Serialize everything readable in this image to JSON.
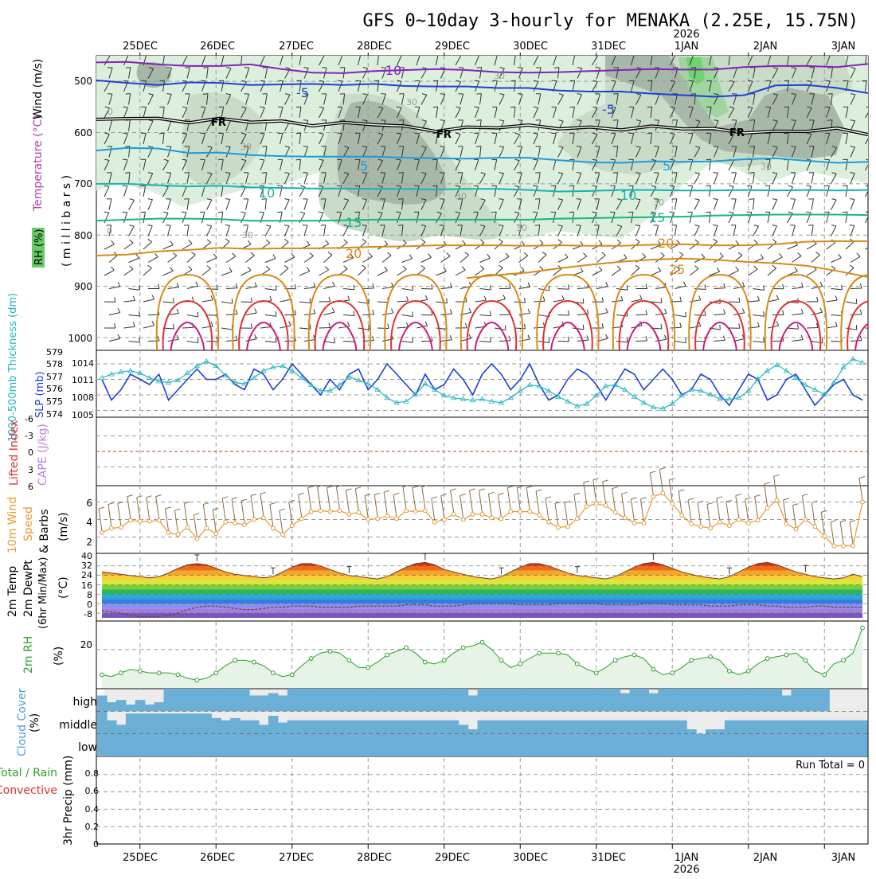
{
  "title": "GFS 0~10day 3-hourly for MENAKA (2.25E, 15.75N)",
  "colors": {
    "rh_fill_light": "#dcefdc",
    "rh_fill_mid": "#c8dcc8",
    "rh_fill_dark": "#a8b8a8",
    "rh_fill_bright": "#22dd22",
    "freezing": "#000000",
    "temp_cold": "#8a1fbf",
    "temp_blue": "#1e3fd8",
    "temp_lightblue": "#1a9be0",
    "temp_teal": "#14b4b4",
    "temp_green": "#18b488",
    "temp_orange": "#d88a18",
    "temp_red": "#e03030",
    "temp_magenta": "#d0187a",
    "slp": "#1e3fd8",
    "thickness": "#22b5c2",
    "wind10m": "#e59a33",
    "rh2m": "#2ca02c",
    "rh2m_fill": "#e8f3e8",
    "cloud": "#6baed6",
    "cloud_clear": "#ececec",
    "lifted": "#e03030",
    "cape": "#c080e0"
  },
  "dates": {
    "top": [
      "25DEC",
      "26DEC",
      "27DEC",
      "28DEC",
      "29DEC",
      "30DEC",
      "31DEC",
      "1JAN",
      "2JAN",
      "3JAN"
    ],
    "bottom": [
      "25DEC",
      "26DEC",
      "27DEC",
      "28DEC",
      "29DEC",
      "30DEC",
      "31DEC",
      "1JAN",
      "2JAN",
      "3JAN"
    ],
    "year": "2026"
  },
  "panels": {
    "upper": {
      "ylabel_rh": "RH (%)",
      "ylabel_temp": "Temperature (°C)",
      "ylabel_wind": "Wind (m/s)",
      "ylabel_mb": "( m i l l i b a r s )",
      "ticks": [
        "500",
        "600",
        "700",
        "800",
        "900",
        "1000"
      ]
    },
    "slp": {
      "ylabel_thick": "1000-500mb Thickness (dm)",
      "ylabel_slp": "SLP (mb)",
      "thick_ticks": [
        "579",
        "578",
        "577",
        "576",
        "575",
        "574"
      ],
      "slp_ticks": [
        "1014",
        "1011",
        "1008",
        "1005"
      ]
    },
    "li": {
      "ylabel_li": "Lifted Index",
      "ylabel_cape": "CAPE (J/kg)",
      "ticks": [
        "-6",
        "-3",
        "0",
        "3",
        "6"
      ]
    },
    "wind": {
      "ylabel1": "10m Wind",
      "ylabel2": "Speed",
      "ylabel3": "& Barbs",
      "ylabel4": "(m/s)",
      "ticks": [
        "6",
        "4",
        "2"
      ]
    },
    "temp": {
      "ylabel1": "2m Temp",
      "ylabel2": "2m DewPt",
      "ylabel3": "(6hr Min/Max)",
      "ylabel4": "(°C)",
      "ticks": [
        "40",
        "32",
        "24",
        "16",
        "8",
        "0",
        "-8"
      ]
    },
    "rh": {
      "ylabel1": "2m RH",
      "ylabel2": "(%)",
      "ticks": [
        "20"
      ]
    },
    "cloud": {
      "ylabel1": "Cloud Cover",
      "ylabel2": "(%)",
      "levels": [
        "high",
        "middle",
        "low"
      ]
    },
    "precip": {
      "ylabel1": "Total / Rain",
      "ylabel2": "Convective",
      "ylabel3": "3hr Precip (mm)",
      "ticks": [
        "0.8",
        "0.6",
        "0.4",
        "0.2",
        "0"
      ],
      "run_total": "Run Total = 0"
    }
  },
  "chart_data": {
    "type": "line",
    "x_unit": "3-hourly forecast steps (0 = 24DEC 12Z)",
    "day_ticks_step": [
      4,
      12,
      20,
      28,
      36,
      44,
      52,
      60,
      68,
      76
    ],
    "n_steps": 81,
    "contour_labels": [
      {
        "text": "-10",
        "level": "temp"
      },
      {
        "text": "-5",
        "level": "temp"
      },
      {
        "text": "-5",
        "level": "temp"
      },
      {
        "text": "FR",
        "level": "freezing"
      },
      {
        "text": "FR",
        "level": "freezing"
      },
      {
        "text": "FR",
        "level": "freezing"
      },
      {
        "text": "5",
        "level": "temp"
      },
      {
        "text": "5",
        "level": "temp"
      },
      {
        "text": "10",
        "level": "temp"
      },
      {
        "text": "10",
        "level": "temp"
      },
      {
        "text": "15",
        "level": "temp"
      },
      {
        "text": "15",
        "level": "temp"
      },
      {
        "text": "20",
        "level": "temp"
      },
      {
        "text": "20",
        "level": "temp"
      },
      {
        "text": "25",
        "level": "temp"
      },
      {
        "text": "30",
        "level": "rh"
      },
      {
        "text": "30",
        "level": "rh"
      },
      {
        "text": "30",
        "level": "rh"
      },
      {
        "text": "30",
        "level": "rh"
      },
      {
        "text": "30",
        "level": "rh"
      },
      {
        "text": "30",
        "level": "rh"
      },
      {
        "text": "30",
        "level": "rh"
      },
      {
        "text": "30",
        "level": "rh"
      },
      {
        "text": "0",
        "level": "rh"
      },
      {
        "text": "0",
        "level": "rh"
      }
    ],
    "isotherms_mb": [
      {
        "temp": -10,
        "pressure": [
          463,
          462,
          467,
          470,
          470,
          467,
          476,
          483,
          484,
          480,
          478,
          476,
          478,
          482,
          483,
          482,
          480,
          478,
          476,
          477,
          477,
          472,
          470,
          470,
          472,
          466
        ]
      },
      {
        "temp": -5,
        "pressure": [
          498,
          503,
          507,
          502,
          503,
          507,
          506,
          505,
          507,
          505,
          509,
          510,
          510,
          513,
          513,
          518,
          520,
          520,
          524,
          527,
          530,
          527,
          508,
          507,
          513,
          523
        ]
      },
      {
        "temp": 0,
        "pressure": [
          577,
          570,
          575,
          578,
          575,
          577,
          580,
          584,
          583,
          582,
          590,
          595,
          592,
          588,
          588,
          590,
          592,
          592,
          590,
          590,
          595,
          598,
          600,
          595,
          594,
          601
        ]
      },
      {
        "temp": 5,
        "pressure": [
          635,
          630,
          631,
          640,
          639,
          644,
          646,
          647,
          647,
          647,
          649,
          650,
          651,
          649,
          649,
          654,
          658,
          659,
          656,
          657,
          656,
          652,
          650,
          655,
          659,
          657
        ]
      },
      {
        "temp": 10,
        "pressure": [
          700,
          700,
          703,
          705,
          704,
          707,
          708,
          709,
          709,
          710,
          710,
          711,
          710,
          710,
          712,
          715,
          714,
          712,
          712,
          713,
          713,
          712,
          713,
          712,
          713,
          712
        ]
      },
      {
        "temp": 15,
        "pressure": [
          772,
          770,
          768,
          768,
          769,
          772,
          772,
          772,
          771,
          770,
          770,
          770,
          770,
          770,
          770,
          768,
          767,
          766,
          765,
          764,
          762,
          761,
          760,
          760,
          760,
          761
        ]
      },
      {
        "temp": 20,
        "pressure": [
          840,
          838,
          832,
          829,
          825,
          827,
          826,
          826,
          825,
          823,
          822,
          820,
          820,
          820,
          821,
          820,
          821,
          821,
          819,
          818,
          820,
          820,
          818,
          813,
          812,
          812
        ]
      },
      {
        "temp": 25,
        "pressure": [
          null,
          null,
          null,
          null,
          null,
          null,
          null,
          null,
          null,
          null,
          null,
          null,
          884,
          878,
          873,
          865,
          858,
          852,
          848,
          846,
          848,
          852,
          855,
          860,
          870,
          882
        ]
      }
    ],
    "slp_mb": [
      1011,
      1007,
      1009,
      1012,
      1011,
      1010,
      1012,
      1007,
      1009,
      1011,
      1013,
      1011,
      1011,
      1012,
      1010,
      1009,
      1013,
      1012,
      1009,
      1011,
      1014,
      1012,
      1010,
      1008,
      1011,
      1009,
      1012,
      1013,
      1009,
      1011,
      1014,
      1012,
      1010,
      1008,
      1012,
      1009,
      1010,
      1013,
      1011,
      1008,
      1012,
      1014,
      1012,
      1009,
      1011,
      1014,
      1010,
      1007,
      1008,
      1011,
      1013,
      1012,
      1010,
      1007,
      1010,
      1013,
      1012,
      1009,
      1011,
      1013,
      1011,
      1008,
      1009,
      1012,
      1011,
      1008,
      1006,
      1009,
      1012,
      1011,
      1007,
      1008,
      1011,
      1012,
      1009,
      1006,
      1008,
      1010,
      1011,
      1008,
      1007
    ],
    "thickness_dm": [
      577.0,
      577.3,
      577.5,
      577.6,
      577.4,
      577.0,
      576.7,
      576.6,
      576.8,
      577.4,
      578.0,
      578.4,
      578.0,
      577.2,
      576.6,
      576.5,
      577.0,
      577.6,
      577.9,
      578.0,
      577.6,
      577.0,
      576.4,
      575.9,
      575.9,
      576.4,
      577.1,
      576.8,
      576.5,
      576.0,
      575.3,
      574.9,
      575.0,
      575.6,
      576.5,
      576.0,
      575.5,
      575.3,
      575.2,
      575.1,
      575.2,
      575.0,
      574.9,
      575.3,
      575.9,
      576.4,
      576.3,
      575.9,
      575.4,
      575.0,
      574.6,
      574.8,
      575.5,
      576.3,
      576.4,
      576.0,
      575.4,
      574.9,
      574.5,
      574.4,
      574.8,
      575.5,
      576.0,
      575.9,
      575.6,
      575.2,
      575.2,
      575.3,
      575.9,
      576.9,
      577.6,
      578.1,
      577.6,
      577.0,
      576.4,
      576.0,
      575.6,
      576.6,
      577.9,
      578.6,
      578.3
    ],
    "wind10m_ms": [
      2.5,
      3.0,
      3.1,
      3.9,
      3.8,
      3.8,
      3.9,
      2.5,
      2.3,
      3.1,
      1.8,
      3.0,
      2.4,
      3.7,
      3.6,
      3.4,
      4.0,
      4.2,
      3.0,
      2.3,
      3.3,
      4.1,
      4.9,
      5.0,
      4.9,
      5.0,
      4.6,
      4.8,
      4.0,
      4.1,
      4.4,
      4.1,
      5.0,
      4.9,
      5.0,
      3.7,
      4.0,
      4.6,
      4.0,
      4.6,
      4.6,
      4.2,
      4.1,
      4.9,
      4.9,
      4.9,
      4.5,
      3.7,
      3.1,
      3.2,
      4.1,
      5.5,
      5.8,
      5.6,
      4.8,
      4.2,
      3.6,
      3.6,
      6.6,
      7.0,
      5.8,
      4.5,
      3.5,
      3.2,
      3.0,
      3.7,
      3.3,
      4.0,
      3.6,
      3.9,
      5.3,
      6.2,
      3.5,
      2.9,
      4.0,
      3.2,
      2.1,
      1.0,
      1.0,
      1.0,
      6.0
    ],
    "temp2m_c": [
      27,
      26,
      25,
      24,
      23,
      22,
      23,
      26,
      30,
      33,
      34,
      33,
      30,
      27,
      25,
      24,
      23,
      22,
      23,
      27,
      31,
      34,
      34,
      32,
      29,
      26,
      24,
      23,
      22,
      21,
      23,
      27,
      31,
      34,
      35,
      33,
      29,
      27,
      25,
      23,
      22,
      21,
      23,
      27,
      31,
      34,
      34,
      32,
      29,
      26,
      24,
      23,
      22,
      21,
      23,
      27,
      31,
      34,
      35,
      33,
      30,
      27,
      25,
      23,
      22,
      21,
      23,
      27,
      31,
      34,
      35,
      33,
      30,
      27,
      25,
      23,
      22,
      21,
      22,
      25,
      23
    ],
    "dewpt2m_c": [
      -6,
      -7,
      -8,
      -10,
      -11,
      -11,
      -11,
      -10,
      -8,
      -5,
      -3,
      -2,
      -2,
      -3,
      -4,
      -5,
      -5,
      -4,
      -3,
      -3,
      -2,
      -2,
      -2,
      -3,
      -3,
      -3,
      -3,
      -2,
      -2,
      -2,
      -2,
      -2,
      -1,
      -1,
      -1,
      -2,
      -2,
      -2,
      -1,
      0,
      0,
      0,
      0,
      0,
      -1,
      -1,
      -1,
      -1,
      0,
      0,
      0,
      0,
      0,
      -1,
      -1,
      -1,
      -1,
      0,
      0,
      0,
      -1,
      -1,
      -1,
      -1,
      -2,
      -2,
      -2,
      -1,
      -1,
      -1,
      -2,
      -2,
      -3,
      -3,
      -3,
      -2,
      -2,
      -3,
      -3,
      -3,
      -3
    ],
    "rh2m_pct": [
      6,
      5,
      7,
      9,
      8,
      7,
      7,
      7,
      6,
      4,
      3,
      4,
      7,
      11,
      14,
      14,
      13,
      11,
      7,
      5,
      6,
      11,
      15,
      18,
      19,
      18,
      14,
      10,
      10,
      13,
      17,
      19,
      21,
      18,
      13,
      12,
      14,
      18,
      21,
      22,
      24,
      20,
      14,
      10,
      12,
      15,
      18,
      18,
      18,
      17,
      12,
      9,
      7,
      10,
      14,
      16,
      17,
      15,
      9,
      6,
      7,
      10,
      14,
      15,
      16,
      14,
      8,
      6,
      8,
      12,
      15,
      16,
      17,
      18,
      14,
      8,
      6,
      12,
      14,
      18,
      32
    ],
    "cloud_high_pct": [
      70,
      40,
      50,
      30,
      50,
      30,
      40,
      100,
      100,
      100,
      100,
      100,
      100,
      100,
      100,
      100,
      70,
      70,
      80,
      70,
      100,
      100,
      100,
      100,
      100,
      100,
      100,
      100,
      100,
      100,
      100,
      100,
      100,
      100,
      100,
      100,
      100,
      100,
      100,
      70,
      100,
      100,
      100,
      100,
      100,
      100,
      100,
      100,
      100,
      100,
      100,
      100,
      100,
      100,
      100,
      80,
      100,
      100,
      80,
      100,
      100,
      100,
      100,
      100,
      100,
      100,
      100,
      100,
      100,
      100,
      100,
      100,
      70,
      100,
      100,
      100,
      100,
      0,
      0,
      0,
      0
    ],
    "cloud_mid_pct": [
      100,
      60,
      40,
      90,
      90,
      90,
      90,
      90,
      90,
      90,
      90,
      90,
      70,
      60,
      70,
      60,
      60,
      40,
      80,
      50,
      60,
      60,
      60,
      60,
      60,
      60,
      60,
      60,
      60,
      60,
      60,
      60,
      60,
      60,
      60,
      60,
      60,
      60,
      40,
      20,
      60,
      60,
      60,
      60,
      60,
      60,
      60,
      60,
      60,
      60,
      60,
      60,
      60,
      60,
      60,
      60,
      60,
      60,
      60,
      60,
      60,
      60,
      20,
      0,
      20,
      20,
      60,
      60,
      60,
      60,
      60,
      60,
      60,
      60,
      60,
      60,
      60,
      60,
      60,
      60,
      60
    ],
    "cloud_low_pct": [
      100,
      100,
      100,
      100,
      100,
      100,
      100,
      100,
      100,
      100,
      100,
      100,
      100,
      100,
      100,
      100,
      100,
      100,
      100,
      100,
      100,
      100,
      100,
      100,
      100,
      100,
      100,
      100,
      100,
      100,
      100,
      100,
      100,
      100,
      100,
      100,
      100,
      100,
      100,
      100,
      100,
      100,
      100,
      100,
      100,
      100,
      100,
      100,
      100,
      100,
      100,
      100,
      100,
      100,
      100,
      100,
      100,
      100,
      100,
      100,
      100,
      100,
      100,
      100,
      100,
      100,
      100,
      100,
      100,
      100,
      100,
      100,
      100,
      100,
      100,
      100,
      100,
      100,
      100,
      100,
      100
    ],
    "precip_3hr_mm": [],
    "lifted_index": [],
    "slp_range": [
      1004,
      1016
    ],
    "thickness_range": [
      573.8,
      579.2
    ],
    "wind_range": [
      0.5,
      7.5
    ],
    "temp_range": [
      -12,
      40
    ],
    "rh_range": [
      0,
      34
    ],
    "precip_range": [
      0,
      1.0
    ],
    "li_range": [
      -6,
      6
    ],
    "pressure_range": [
      450,
      1025
    ]
  }
}
